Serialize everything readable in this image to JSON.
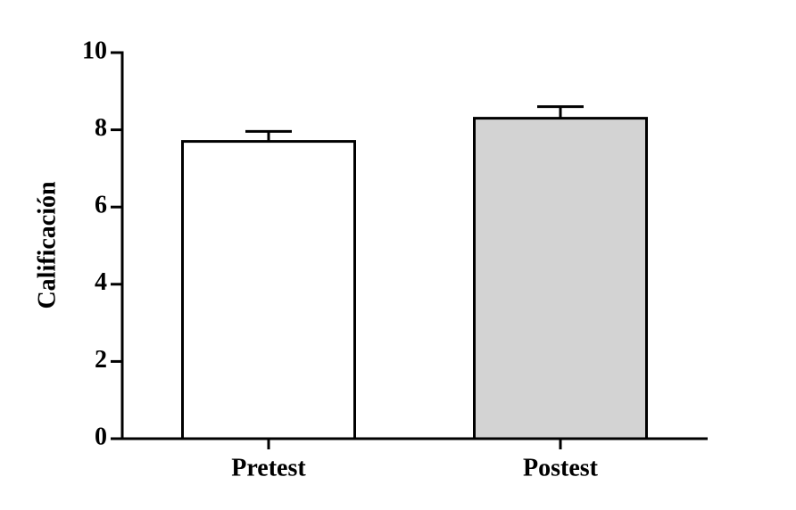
{
  "chart_data": {
    "type": "bar",
    "y_label": "Calificación",
    "categories": [
      "Pretest",
      "Postest"
    ],
    "values": [
      7.7,
      8.3
    ],
    "errors": [
      0.26,
      0.3
    ],
    "colors": [
      "#ffffff",
      "#d3d3d3"
    ],
    "ylim": [
      0,
      10
    ],
    "yticks": [
      0,
      2,
      4,
      6,
      8,
      10
    ],
    "grid": false
  }
}
